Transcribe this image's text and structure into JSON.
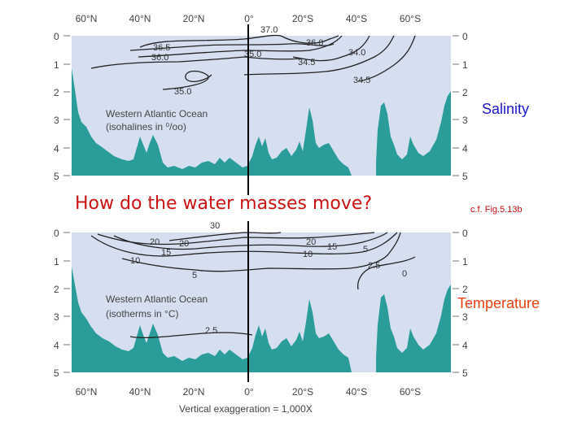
{
  "overlay": {
    "question": "How do the water masses move?",
    "salinity_label": "Salinity",
    "temperature_label": "Temperature",
    "figure_ref": "c.f. Fig.5.13b"
  },
  "top_panel": {
    "latitude_labels": [
      "60°N",
      "40°N",
      "20°N",
      "0°",
      "20°S",
      "40°S",
      "60°S"
    ],
    "depth_labels": [
      "0",
      "1",
      "2",
      "3",
      "4",
      "5"
    ],
    "title_line1": "Western Atlantic Ocean",
    "title_line2": "(isohalines in ⁰/oo)",
    "contour_labels": [
      "37.0",
      "36.5",
      "36.0",
      "35.0",
      "36.0",
      "34.0",
      "34.5",
      "34.5",
      "35.0"
    ]
  },
  "bottom_panel": {
    "latitude_labels": [
      "60°N",
      "40°N",
      "20°N",
      "0°",
      "20°S",
      "40°S",
      "60°S"
    ],
    "depth_labels": [
      "0",
      "1",
      "2",
      "3",
      "4",
      "5"
    ],
    "title_line1": "Western Atlantic Ocean",
    "title_line2": "(isotherms in °C)",
    "contour_labels": [
      "30",
      "20",
      "20",
      "15",
      "10",
      "5",
      "20",
      "15",
      "10",
      "5",
      "2.5",
      "0",
      "2.5"
    ],
    "footnote": "Vertical exaggeration = 1,000X"
  },
  "colors": {
    "water": "#d6dff0",
    "seafloor": "#2a9c9a",
    "equator_line": "#000000",
    "question_text": "#cc1111",
    "salinity_text": "#1a1acc",
    "temperature_text": "#e84010"
  }
}
